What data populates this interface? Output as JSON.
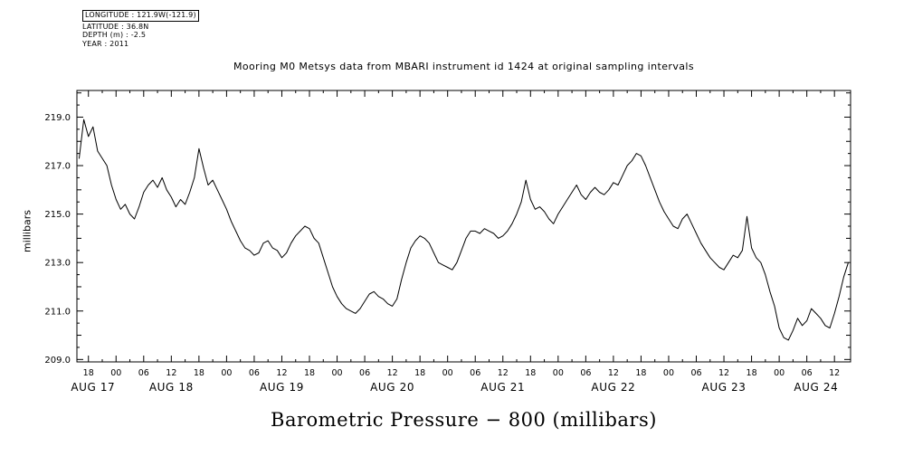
{
  "page": {
    "background": "#ffffff",
    "ink": "#000000"
  },
  "metadata_block": {
    "longitude": "LONGITUDE : 121.9W(-121.9)",
    "latitude": "LATITUDE : 36.8N",
    "depth": "DEPTH (m) : -2.5",
    "year": "YEAR : 2011"
  },
  "title": "Mooring M0 Metsys data from MBARI instrument id 1424 at original sampling intervals",
  "footer_label": "Barometric Pressure − 800 (millibars)",
  "chart_data": {
    "type": "line",
    "title": "Mooring M0 Metsys data from MBARI instrument id 1424 at original sampling intervals",
    "xlabel": "",
    "ylabel": "millibars",
    "line_color": "#000000",
    "grid": false,
    "legend": false,
    "ylim": [
      208.9,
      220.1
    ],
    "y_ticks": [
      {
        "value": 209.0,
        "label": "209.0"
      },
      {
        "value": 211.0,
        "label": "211.0"
      },
      {
        "value": 213.0,
        "label": "213.0"
      },
      {
        "value": 215.0,
        "label": "215.0"
      },
      {
        "value": 217.0,
        "label": "217.0"
      },
      {
        "value": 219.0,
        "label": "219.0"
      }
    ],
    "x_domain_hours": [
      15.5,
      183.5
    ],
    "x_hour_ticks": {
      "t_start": 18,
      "t_step": 6,
      "count": 28,
      "labels": [
        "18",
        "00",
        "06",
        "12",
        "18",
        "00",
        "06",
        "12",
        "18",
        "00",
        "06",
        "12",
        "18",
        "00",
        "06",
        "12",
        "18",
        "00",
        "06",
        "12",
        "18",
        "00",
        "06",
        "12",
        "18",
        "00",
        "06",
        "12"
      ]
    },
    "x_date_labels": [
      {
        "t": 19,
        "label": "AUG 17"
      },
      {
        "t": 36,
        "label": "AUG 18"
      },
      {
        "t": 60,
        "label": "AUG 19"
      },
      {
        "t": 84,
        "label": "AUG 20"
      },
      {
        "t": 108,
        "label": "AUG 21"
      },
      {
        "t": 132,
        "label": "AUG 22"
      },
      {
        "t": 156,
        "label": "AUG 23"
      },
      {
        "t": 176,
        "label": "AUG 24"
      }
    ],
    "series": [
      {
        "name": "Barometric Pressure − 800",
        "units": "millibars",
        "t_start_hour": 16,
        "t_step_hours": 1,
        "values": [
          217.3,
          218.9,
          218.2,
          218.6,
          217.6,
          217.3,
          217.0,
          216.2,
          215.6,
          215.2,
          215.4,
          215.0,
          214.8,
          215.3,
          215.9,
          216.2,
          216.4,
          216.1,
          216.5,
          216.0,
          215.7,
          215.3,
          215.6,
          215.4,
          215.9,
          216.5,
          217.7,
          216.9,
          216.2,
          216.4,
          216.0,
          215.6,
          215.2,
          214.7,
          214.3,
          213.9,
          213.6,
          213.5,
          213.3,
          213.4,
          213.8,
          213.9,
          213.6,
          213.5,
          213.2,
          213.4,
          213.8,
          214.1,
          214.3,
          214.5,
          214.4,
          214.0,
          213.8,
          213.2,
          212.6,
          212.0,
          211.6,
          211.3,
          211.1,
          211.0,
          210.9,
          211.1,
          211.4,
          211.7,
          211.8,
          211.6,
          211.5,
          211.3,
          211.2,
          211.5,
          212.3,
          213.0,
          213.6,
          213.9,
          214.1,
          214.0,
          213.8,
          213.4,
          213.0,
          212.9,
          212.8,
          212.7,
          213.0,
          213.5,
          214.0,
          214.3,
          214.3,
          214.2,
          214.4,
          214.3,
          214.2,
          214.0,
          214.1,
          214.3,
          214.6,
          215.0,
          215.5,
          216.4,
          215.6,
          215.2,
          215.3,
          215.1,
          214.8,
          214.6,
          215.0,
          215.3,
          215.6,
          215.9,
          216.2,
          215.8,
          215.6,
          215.9,
          216.1,
          215.9,
          215.8,
          216.0,
          216.3,
          216.2,
          216.6,
          217.0,
          217.2,
          217.5,
          217.4,
          217.0,
          216.5,
          216.0,
          215.5,
          215.1,
          214.8,
          214.5,
          214.4,
          214.8,
          215.0,
          214.6,
          214.2,
          213.8,
          213.5,
          213.2,
          213.0,
          212.8,
          212.7,
          213.0,
          213.3,
          213.2,
          213.5,
          214.9,
          213.6,
          213.2,
          213.0,
          212.5,
          211.8,
          211.2,
          210.3,
          209.9,
          209.8,
          210.2,
          210.7,
          210.4,
          210.6,
          211.1,
          210.9,
          210.7,
          210.4,
          210.3,
          210.9,
          211.6,
          212.4,
          213.0
        ]
      }
    ]
  }
}
